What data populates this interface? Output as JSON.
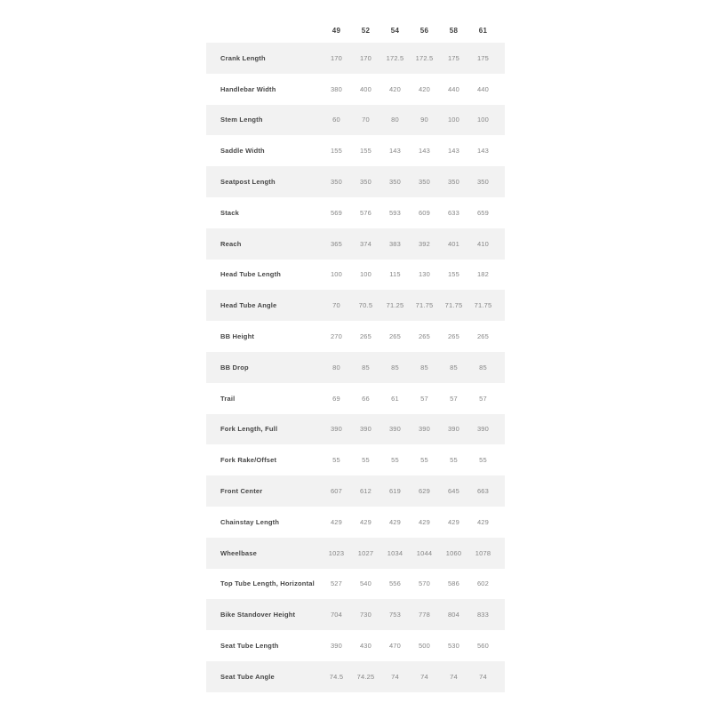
{
  "table": {
    "sizes": [
      "49",
      "52",
      "54",
      "56",
      "58",
      "61"
    ],
    "rows": [
      {
        "label": "Crank Length",
        "values": [
          "170",
          "170",
          "172.5",
          "172.5",
          "175",
          "175"
        ]
      },
      {
        "label": "Handlebar Width",
        "values": [
          "380",
          "400",
          "420",
          "420",
          "440",
          "440"
        ]
      },
      {
        "label": "Stem Length",
        "values": [
          "60",
          "70",
          "80",
          "90",
          "100",
          "100"
        ]
      },
      {
        "label": "Saddle Width",
        "values": [
          "155",
          "155",
          "143",
          "143",
          "143",
          "143"
        ]
      },
      {
        "label": "Seatpost Length",
        "values": [
          "350",
          "350",
          "350",
          "350",
          "350",
          "350"
        ]
      },
      {
        "label": "Stack",
        "values": [
          "569",
          "576",
          "593",
          "609",
          "633",
          "659"
        ]
      },
      {
        "label": "Reach",
        "values": [
          "365",
          "374",
          "383",
          "392",
          "401",
          "410"
        ]
      },
      {
        "label": "Head Tube Length",
        "values": [
          "100",
          "100",
          "115",
          "130",
          "155",
          "182"
        ]
      },
      {
        "label": "Head Tube Angle",
        "values": [
          "70",
          "70.5",
          "71.25",
          "71.75",
          "71.75",
          "71.75"
        ]
      },
      {
        "label": "BB Height",
        "values": [
          "270",
          "265",
          "265",
          "265",
          "265",
          "265"
        ]
      },
      {
        "label": "BB Drop",
        "values": [
          "80",
          "85",
          "85",
          "85",
          "85",
          "85"
        ]
      },
      {
        "label": "Trail",
        "values": [
          "69",
          "66",
          "61",
          "57",
          "57",
          "57"
        ]
      },
      {
        "label": "Fork Length, Full",
        "values": [
          "390",
          "390",
          "390",
          "390",
          "390",
          "390"
        ]
      },
      {
        "label": "Fork Rake/Offset",
        "values": [
          "55",
          "55",
          "55",
          "55",
          "55",
          "55"
        ]
      },
      {
        "label": "Front Center",
        "values": [
          "607",
          "612",
          "619",
          "629",
          "645",
          "663"
        ]
      },
      {
        "label": "Chainstay Length",
        "values": [
          "429",
          "429",
          "429",
          "429",
          "429",
          "429"
        ]
      },
      {
        "label": "Wheelbase",
        "values": [
          "1023",
          "1027",
          "1034",
          "1044",
          "1060",
          "1078"
        ]
      },
      {
        "label": "Top Tube Length, Horizontal",
        "values": [
          "527",
          "540",
          "556",
          "570",
          "586",
          "602"
        ]
      },
      {
        "label": "Bike Standover Height",
        "values": [
          "704",
          "730",
          "753",
          "778",
          "804",
          "833"
        ]
      },
      {
        "label": "Seat Tube Length",
        "values": [
          "390",
          "430",
          "470",
          "500",
          "530",
          "560"
        ]
      },
      {
        "label": "Seat Tube Angle",
        "values": [
          "74.5",
          "74.25",
          "74",
          "74",
          "74",
          "74"
        ]
      }
    ]
  },
  "colors": {
    "row_shaded": "#f2f2f2",
    "header_text": "#3f3f3f",
    "label_text": "#454545",
    "value_text": "#868686"
  }
}
